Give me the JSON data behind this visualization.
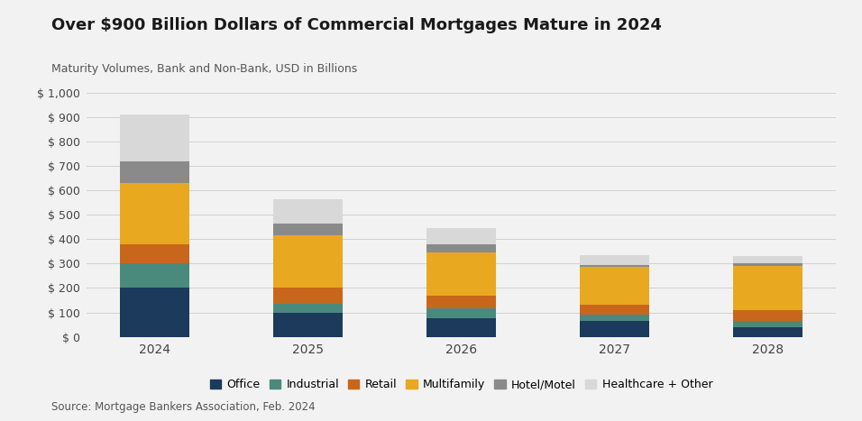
{
  "title": "Over $900 Billion Dollars of Commercial Mortgages Mature in 2024",
  "subtitle": "Maturity Volumes, Bank and Non-Bank, USD in Billions",
  "source": "Source: Mortgage Bankers Association, Feb. 2024",
  "categories": [
    "2024",
    "2025",
    "2026",
    "2027",
    "2028"
  ],
  "series": {
    "Office": [
      200,
      100,
      75,
      65,
      40
    ],
    "Industrial": [
      100,
      35,
      40,
      25,
      25
    ],
    "Retail": [
      80,
      65,
      55,
      40,
      45
    ],
    "Multifamily": [
      250,
      215,
      175,
      155,
      180
    ],
    "Hotel/Motel": [
      90,
      50,
      35,
      10,
      10
    ],
    "Healthcare + Other": [
      190,
      100,
      65,
      40,
      30
    ]
  },
  "colors": {
    "Office": "#1b3a5c",
    "Industrial": "#4a8a7c",
    "Retail": "#c8671b",
    "Multifamily": "#e8a820",
    "Hotel/Motel": "#8a8a8a",
    "Healthcare + Other": "#d8d8d8"
  },
  "ylim": [
    0,
    1000
  ],
  "yticks": [
    0,
    100,
    200,
    300,
    400,
    500,
    600,
    700,
    800,
    900,
    1000
  ],
  "ytick_labels": [
    "$ 0",
    "$ 100",
    "$ 200",
    "$ 300",
    "$ 400",
    "$ 500",
    "$ 600",
    "$ 700",
    "$ 800",
    "$ 900",
    "$ 1,000"
  ],
  "background_color": "#f2f2f2",
  "grid_color": "#d0d0d0",
  "title_fontsize": 13,
  "subtitle_fontsize": 9,
  "source_fontsize": 8.5,
  "tick_fontsize": 9,
  "legend_fontsize": 9,
  "bar_width": 0.45
}
